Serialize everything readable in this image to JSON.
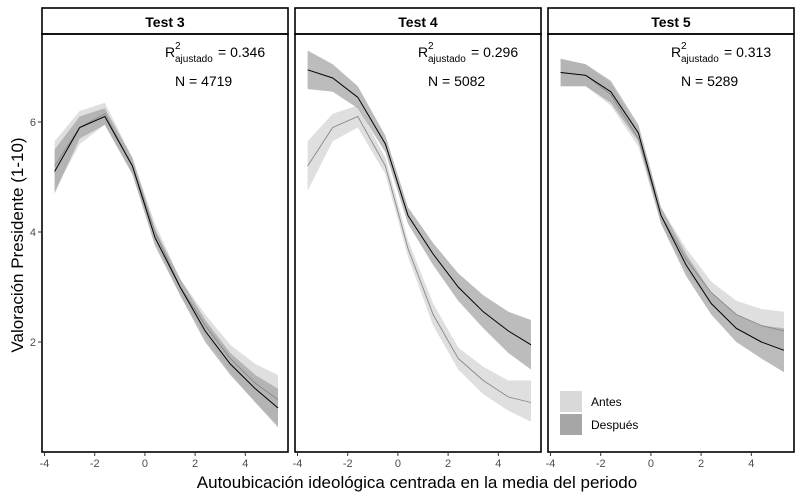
{
  "chart_data": {
    "type": "line",
    "xlabel": "Autoubicación ideológica centrada en la media del periodo",
    "ylabel": "Valoración Presidente (1-10)",
    "xlim": [
      -4.1,
      5.7
    ],
    "ylim": [
      0.0,
      7.6
    ],
    "xticks": [
      -4,
      -2,
      0,
      2,
      4
    ],
    "yticks": [
      2,
      4,
      6
    ],
    "x": [
      -3.6,
      -2.6,
      -1.6,
      -0.5,
      0.4,
      1.4,
      2.4,
      3.4,
      4.4,
      5.3
    ],
    "colors": {
      "antes_band": "#d9d9d9",
      "despues_band": "#a6a6a6",
      "antes_line": "#888888",
      "despues_line": "#000000"
    },
    "legend": {
      "position": "bottom-left",
      "entries": [
        {
          "label": "Antes",
          "color": "#d9d9d9"
        },
        {
          "label": "Después",
          "color": "#a6a6a6"
        }
      ]
    },
    "panels": [
      {
        "strip": "Test 3",
        "r2_label": "R",
        "r2_sup": "2",
        "r2_sub": "ajustado",
        "r2_value": "= 0.346",
        "n_label": "N =  4719",
        "series": [
          {
            "name": "Antes",
            "values": [
              5.2,
              5.9,
              6.15,
              5.2,
              4.0,
              3.0,
              2.3,
              1.7,
              1.25,
              0.95
            ],
            "lower": [
              4.75,
              5.6,
              5.95,
              5.05,
              3.85,
              2.85,
              2.1,
              1.45,
              0.9,
              0.5
            ],
            "upper": [
              5.65,
              6.2,
              6.35,
              5.35,
              4.15,
              3.15,
              2.5,
              1.95,
              1.6,
              1.4
            ]
          },
          {
            "name": "Después",
            "values": [
              5.1,
              5.9,
              6.1,
              5.2,
              3.9,
              3.0,
              2.2,
              1.6,
              1.15,
              0.8
            ],
            "lower": [
              4.7,
              5.7,
              5.95,
              5.05,
              3.75,
              2.85,
              2.0,
              1.4,
              0.9,
              0.45
            ],
            "upper": [
              5.5,
              6.1,
              6.25,
              5.35,
              4.05,
              3.15,
              2.4,
              1.8,
              1.4,
              1.15
            ]
          }
        ]
      },
      {
        "strip": "Test 4",
        "r2_label": "R",
        "r2_sup": "2",
        "r2_sub": "ajustado",
        "r2_value": "= 0.296",
        "n_label": "N =  5082",
        "series": [
          {
            "name": "Antes",
            "values": [
              5.2,
              5.9,
              6.1,
              5.2,
              3.7,
              2.5,
              1.7,
              1.3,
              1.0,
              0.9
            ],
            "lower": [
              4.75,
              5.65,
              5.9,
              5.05,
              3.55,
              2.3,
              1.5,
              1.05,
              0.75,
              0.55
            ],
            "upper": [
              5.65,
              6.15,
              6.3,
              5.35,
              3.85,
              2.7,
              1.9,
              1.55,
              1.3,
              1.3
            ]
          },
          {
            "name": "Después",
            "values": [
              6.95,
              6.8,
              6.45,
              5.6,
              4.3,
              3.6,
              3.0,
              2.55,
              2.2,
              1.95
            ],
            "lower": [
              6.6,
              6.55,
              6.25,
              5.45,
              4.15,
              3.4,
              2.75,
              2.25,
              1.8,
              1.5
            ],
            "upper": [
              7.3,
              7.05,
              6.65,
              5.75,
              4.45,
              3.8,
              3.25,
              2.85,
              2.55,
              2.4
            ]
          }
        ]
      },
      {
        "strip": "Test 5",
        "r2_label": "R",
        "r2_sup": "2",
        "r2_sub": "ajustado",
        "r2_value": "= 0.313",
        "n_label": "N =  5289",
        "series": [
          {
            "name": "Antes",
            "values": [
              6.9,
              6.85,
              6.5,
              5.7,
              4.3,
              3.5,
              2.9,
              2.5,
              2.3,
              2.2
            ],
            "lower": [
              6.65,
              6.65,
              6.3,
              5.55,
              4.15,
              3.3,
              2.7,
              2.25,
              2.0,
              1.85
            ],
            "upper": [
              7.15,
              7.05,
              6.7,
              5.85,
              4.45,
              3.7,
              3.1,
              2.75,
              2.6,
              2.55
            ]
          },
          {
            "name": "Después",
            "values": [
              6.9,
              6.85,
              6.55,
              5.8,
              4.3,
              3.4,
              2.7,
              2.25,
              2.0,
              1.85
            ],
            "lower": [
              6.65,
              6.65,
              6.35,
              5.65,
              4.15,
              3.2,
              2.5,
              2.0,
              1.7,
              1.45
            ],
            "upper": [
              7.15,
              7.05,
              6.75,
              5.95,
              4.45,
              3.6,
              2.9,
              2.5,
              2.3,
              2.25
            ]
          }
        ]
      }
    ]
  }
}
